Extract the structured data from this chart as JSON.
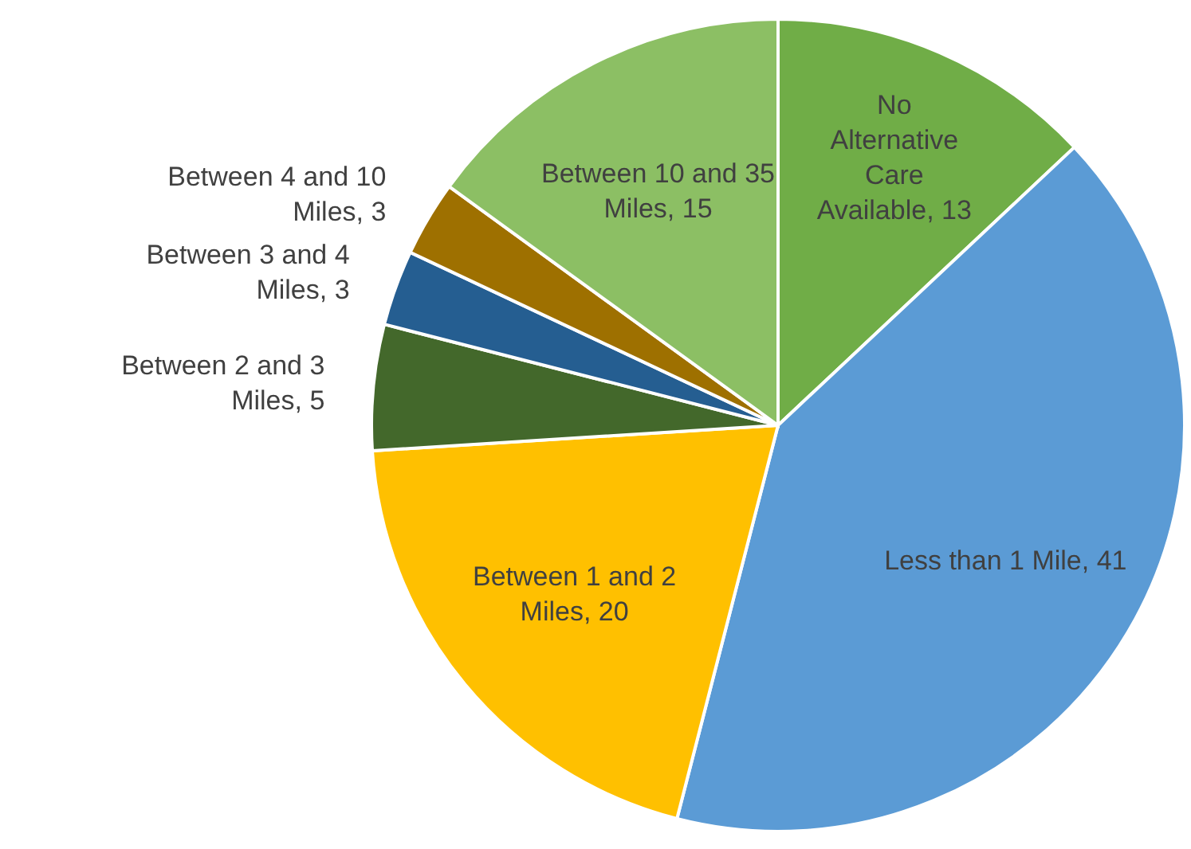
{
  "chart_data": {
    "type": "pie",
    "categories": [
      "No Alternative Care Available",
      "Less than 1 Mile",
      "Between 1 and 2 Miles",
      "Between 2 and 3 Miles",
      "Between 3 and 4 Miles",
      "Between 4 and 10 Miles",
      "Between 10 and 35 Miles"
    ],
    "values": [
      13,
      41,
      20,
      5,
      3,
      3,
      15
    ],
    "value_labels": [
      ", 13",
      ", 41",
      ", 20",
      ", 5",
      ", 3",
      ", 3",
      ", 15"
    ],
    "colors": [
      "#70ad47",
      "#5b9bd5",
      "#ffc000",
      "#43682b",
      "#255e91",
      "#9e7000",
      "#8cbf64"
    ]
  }
}
